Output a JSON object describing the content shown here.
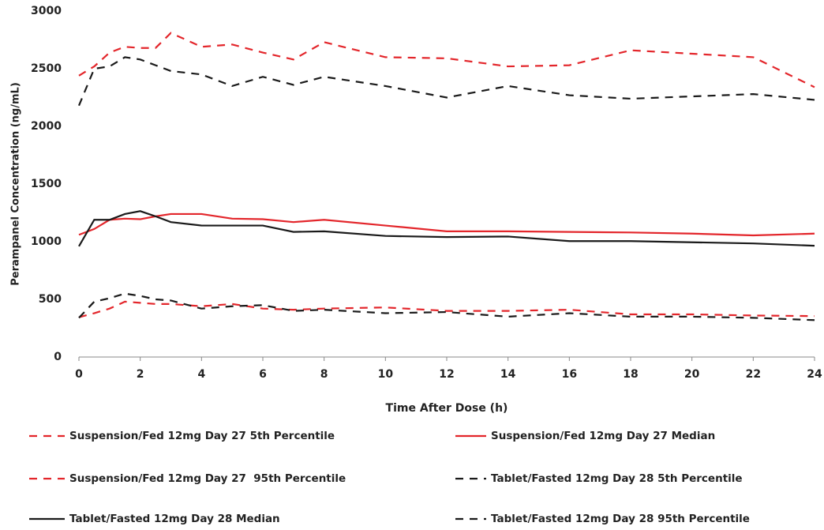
{
  "chart_data": {
    "type": "line",
    "x_label": "Time After Dose (h)",
    "y_label": "Perampanel Concentration (ng/mL)",
    "x": [
      0,
      0.5,
      1,
      1.5,
      2,
      2.5,
      3,
      4,
      5,
      6,
      7,
      8,
      10,
      12,
      14,
      16,
      18,
      20,
      22,
      24
    ],
    "series": [
      {
        "name": "Suspension/Fed 12mg Day 27 5th Percentile",
        "color": "#e3262b",
        "line_style": "dashed",
        "values": [
          345,
          380,
          420,
          480,
          470,
          460,
          460,
          440,
          460,
          420,
          410,
          420,
          430,
          400,
          400,
          410,
          370,
          370,
          360,
          355
        ]
      },
      {
        "name": "Suspension/Fed 12mg Day 27 Median",
        "color": "#e3262b",
        "line_style": "solid",
        "values": [
          1060,
          1110,
          1190,
          1200,
          1195,
          1220,
          1240,
          1240,
          1200,
          1195,
          1170,
          1190,
          1140,
          1090,
          1090,
          1085,
          1080,
          1070,
          1055,
          1070
        ]
      },
      {
        "name": "Suspension/Fed 12mg Day 27  95th Percentile",
        "color": "#e3262b",
        "line_style": "dashed",
        "values": [
          2440,
          2520,
          2640,
          2690,
          2680,
          2680,
          2810,
          2690,
          2710,
          2640,
          2580,
          2730,
          2600,
          2590,
          2520,
          2530,
          2660,
          2630,
          2600,
          2340
        ]
      },
      {
        "name": "Tablet/Fasted 12mg Day 28 5th Percentile",
        "color": "#1a1a1a",
        "line_style": "dashed",
        "values": [
          340,
          480,
          510,
          550,
          530,
          500,
          490,
          420,
          440,
          450,
          400,
          410,
          380,
          390,
          350,
          380,
          350,
          350,
          340,
          320
        ]
      },
      {
        "name": "Tablet/Fasted 12mg Day 28 Median",
        "color": "#1a1a1a",
        "line_style": "solid",
        "values": [
          960,
          1190,
          1190,
          1240,
          1265,
          1220,
          1170,
          1140,
          1140,
          1140,
          1085,
          1090,
          1050,
          1040,
          1045,
          1005,
          1005,
          995,
          985,
          965
        ]
      },
      {
        "name": "Tablet/Fasted 12mg Day 28 95th Percentile",
        "color": "#1a1a1a",
        "line_style": "dashed",
        "values": [
          2180,
          2500,
          2520,
          2600,
          2580,
          2530,
          2480,
          2450,
          2350,
          2430,
          2360,
          2430,
          2350,
          2250,
          2350,
          2270,
          2240,
          2260,
          2280,
          2230
        ]
      }
    ],
    "xlim": [
      0,
      24
    ],
    "xticks": [
      0,
      2,
      4,
      6,
      8,
      10,
      12,
      14,
      16,
      18,
      20,
      22,
      24
    ],
    "ylim": [
      0,
      3000
    ],
    "yticks": [
      0,
      500,
      1000,
      1500,
      2000,
      2500,
      3000
    ],
    "grid": false
  }
}
